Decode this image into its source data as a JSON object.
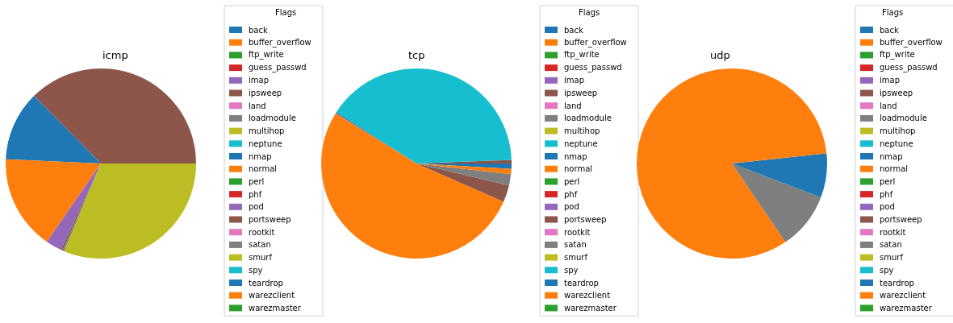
{
  "chart_data": [
    {
      "type": "pie",
      "title": "icmp",
      "legend_title": "Flags",
      "legend": "right",
      "categories": [
        "back",
        "buffer_overflow",
        "ftp_write",
        "guess_passwd",
        "imap",
        "ipsweep",
        "land",
        "loadmodule",
        "multihop",
        "neptune",
        "nmap",
        "normal",
        "perl",
        "phf",
        "pod",
        "portsweep",
        "rootkit",
        "satan",
        "smurf",
        "spy",
        "teardrop",
        "warezclient",
        "warezmaster"
      ],
      "values": [
        0,
        0,
        0,
        0,
        0,
        37.4,
        0,
        0,
        0,
        0,
        11.9,
        16.1,
        0,
        0,
        2.7,
        0.3,
        0,
        0.3,
        31.3,
        0,
        0,
        0,
        0
      ],
      "colors": [
        "#1f77b4",
        "#ff7f0e",
        "#2ca02c",
        "#d62728",
        "#9467bd",
        "#8c564b",
        "#e377c2",
        "#7f7f7f",
        "#bcbd22",
        "#17becf",
        "#1f77b4",
        "#ff7f0e",
        "#2ca02c",
        "#d62728",
        "#9467bd",
        "#8c564b",
        "#e377c2",
        "#7f7f7f",
        "#bcbd22",
        "#17becf",
        "#1f77b4",
        "#ff7f0e",
        "#2ca02c"
      ]
    },
    {
      "type": "pie",
      "title": "tcp",
      "legend_title": "Flags",
      "legend": "right",
      "categories": [
        "back",
        "buffer_overflow",
        "ftp_write",
        "guess_passwd",
        "imap",
        "ipsweep",
        "land",
        "loadmodule",
        "multihop",
        "neptune",
        "nmap",
        "normal",
        "perl",
        "phf",
        "pod",
        "portsweep",
        "rootkit",
        "satan",
        "smurf",
        "spy",
        "teardrop",
        "warezclient",
        "warezmaster"
      ],
      "values": [
        0.9,
        0,
        0,
        0,
        0,
        0.6,
        0,
        0,
        0,
        40.3,
        0.2,
        52.3,
        0,
        0,
        0,
        2.9,
        0,
        1.9,
        0,
        0,
        0,
        0.9,
        0
      ],
      "colors": [
        "#1f77b4",
        "#ff7f0e",
        "#2ca02c",
        "#d62728",
        "#9467bd",
        "#8c564b",
        "#e377c2",
        "#7f7f7f",
        "#bcbd22",
        "#17becf",
        "#1f77b4",
        "#ff7f0e",
        "#2ca02c",
        "#d62728",
        "#9467bd",
        "#8c564b",
        "#e377c2",
        "#7f7f7f",
        "#bcbd22",
        "#17becf",
        "#1f77b4",
        "#ff7f0e",
        "#2ca02c"
      ]
    },
    {
      "type": "pie",
      "title": "udp",
      "legend_title": "Flags",
      "legend": "right",
      "categories": [
        "back",
        "buffer_overflow",
        "ftp_write",
        "guess_passwd",
        "imap",
        "ipsweep",
        "land",
        "loadmodule",
        "multihop",
        "neptune",
        "nmap",
        "normal",
        "perl",
        "phf",
        "pod",
        "portsweep",
        "rootkit",
        "satan",
        "smurf",
        "spy",
        "teardrop",
        "warezclient",
        "warezmaster"
      ],
      "values": [
        0,
        0,
        0,
        0,
        0,
        0,
        0,
        0,
        0,
        0,
        1.7,
        82.8,
        0,
        0,
        0,
        0,
        0,
        9.7,
        0,
        0,
        5.8,
        0,
        0
      ],
      "colors": [
        "#1f77b4",
        "#ff7f0e",
        "#2ca02c",
        "#d62728",
        "#9467bd",
        "#8c564b",
        "#e377c2",
        "#7f7f7f",
        "#bcbd22",
        "#17becf",
        "#1f77b4",
        "#ff7f0e",
        "#2ca02c",
        "#d62728",
        "#9467bd",
        "#8c564b",
        "#e377c2",
        "#7f7f7f",
        "#bcbd22",
        "#17becf",
        "#1f77b4",
        "#ff7f0e",
        "#2ca02c"
      ]
    }
  ]
}
